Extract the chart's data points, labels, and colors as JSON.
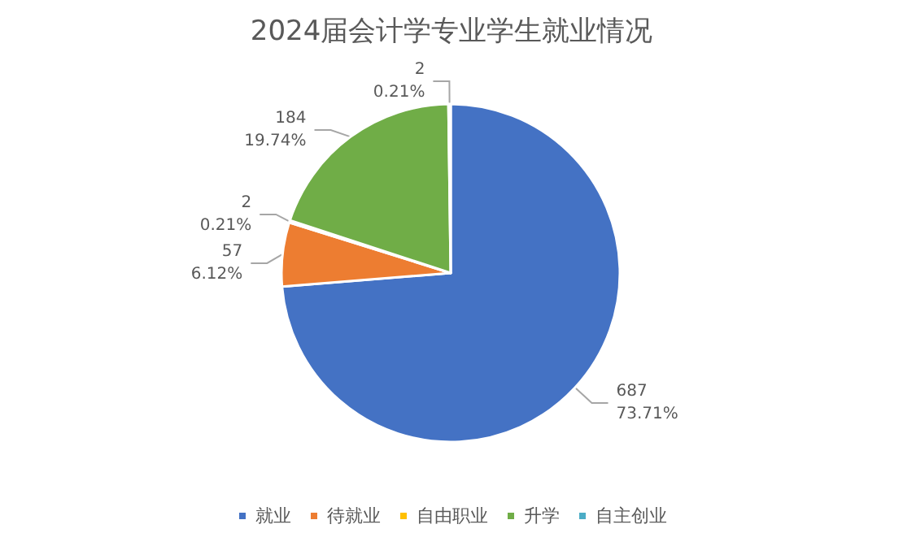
{
  "chart_data": {
    "type": "pie",
    "title": "2024届会计学专业学生就业情况",
    "categories": [
      "就业",
      "待就业",
      "自由职业",
      "升学",
      "自主创业"
    ],
    "values": [
      687,
      57,
      2,
      184,
      2
    ],
    "value_labels": [
      "687\n73.71%",
      "57\n6.12%",
      "2\n0.21%",
      "184\n19.74%",
      "2\n0.21%"
    ],
    "colors": [
      "#4472c4",
      "#ed7d31",
      "#ffc000",
      "#70ad47",
      "#4bacc6"
    ],
    "legend": "bottom"
  }
}
